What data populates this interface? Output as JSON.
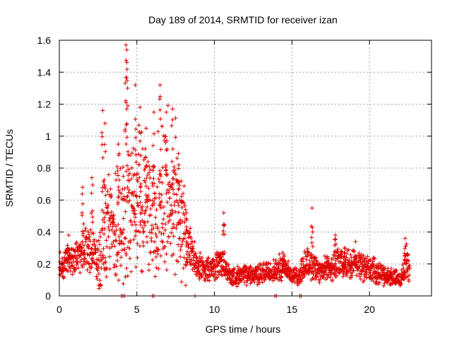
{
  "chart_data": {
    "type": "scatter",
    "title": "Day 189 of 2014, SRMTID for receiver izan",
    "xlabel": "GPS time / hours",
    "ylabel": "SRMTID / TECUs",
    "xlim": [
      0,
      24
    ],
    "ylim": [
      0,
      1.6
    ],
    "xticks": [
      0,
      5,
      10,
      15,
      20
    ],
    "xtick_labels": [
      "0",
      "5",
      "10",
      "15",
      "20"
    ],
    "yticks": [
      0,
      0.2,
      0.4,
      0.6,
      0.8,
      1,
      1.2,
      1.4,
      1.6
    ],
    "ytick_labels": [
      "0",
      "0.2",
      "0.4",
      "0.6",
      "0.8",
      "1",
      "1.2",
      "1.4",
      "1.6"
    ],
    "grid": true,
    "marker": "+",
    "colors": {
      "series": "#e00000",
      "axis": "#000000",
      "grid": "#a0a0a0"
    },
    "series": [
      {
        "name": "SRMTID",
        "envelope": [
          [
            0.0,
            0.18
          ],
          [
            0.5,
            0.22
          ],
          [
            1.0,
            0.24
          ],
          [
            1.5,
            0.3
          ],
          [
            2.0,
            0.3
          ],
          [
            2.5,
            0.24
          ],
          [
            3.0,
            0.34
          ],
          [
            3.5,
            0.36
          ],
          [
            4.0,
            0.42
          ],
          [
            4.5,
            0.5
          ],
          [
            5.0,
            0.55
          ],
          [
            5.5,
            0.52
          ],
          [
            6.0,
            0.48
          ],
          [
            6.5,
            0.52
          ],
          [
            7.0,
            0.58
          ],
          [
            7.5,
            0.6
          ],
          [
            8.0,
            0.42
          ],
          [
            8.5,
            0.28
          ],
          [
            9.0,
            0.18
          ],
          [
            9.5,
            0.16
          ],
          [
            10.0,
            0.18
          ],
          [
            10.5,
            0.22
          ],
          [
            11.0,
            0.12
          ],
          [
            12.0,
            0.13
          ],
          [
            13.0,
            0.14
          ],
          [
            14.0,
            0.16
          ],
          [
            14.5,
            0.2
          ],
          [
            15.0,
            0.12
          ],
          [
            15.5,
            0.13
          ],
          [
            16.0,
            0.22
          ],
          [
            16.5,
            0.18
          ],
          [
            17.0,
            0.16
          ],
          [
            18.0,
            0.2
          ],
          [
            19.0,
            0.2
          ],
          [
            20.0,
            0.17
          ],
          [
            21.0,
            0.13
          ],
          [
            22.0,
            0.1
          ],
          [
            22.4,
            0.22
          ],
          [
            22.6,
            0.14
          ]
        ],
        "peaks": [
          {
            "x": 0.6,
            "y": 0.38
          },
          {
            "x": 1.5,
            "y": 0.68
          },
          {
            "x": 2.1,
            "y": 0.74
          },
          {
            "x": 2.8,
            "y": 1.16
          },
          {
            "x": 2.95,
            "y": 1.08
          },
          {
            "x": 3.8,
            "y": 0.95
          },
          {
            "x": 4.3,
            "y": 1.57
          },
          {
            "x": 4.35,
            "y": 1.54
          },
          {
            "x": 4.4,
            "y": 1.3
          },
          {
            "x": 4.9,
            "y": 1.32
          },
          {
            "x": 5.2,
            "y": 1.18
          },
          {
            "x": 5.6,
            "y": 1.05
          },
          {
            "x": 6.1,
            "y": 1.15
          },
          {
            "x": 6.5,
            "y": 1.32
          },
          {
            "x": 6.9,
            "y": 1.15
          },
          {
            "x": 7.3,
            "y": 1.17
          },
          {
            "x": 7.7,
            "y": 0.82
          },
          {
            "x": 8.2,
            "y": 0.52
          },
          {
            "x": 10.6,
            "y": 0.52
          },
          {
            "x": 14.4,
            "y": 0.27
          },
          {
            "x": 16.3,
            "y": 0.55
          },
          {
            "x": 17.8,
            "y": 0.38
          },
          {
            "x": 18.4,
            "y": 0.3
          },
          {
            "x": 19.1,
            "y": 0.34
          },
          {
            "x": 22.3,
            "y": 0.36
          }
        ],
        "zero_points": [
          4.0,
          4.1,
          4.2,
          6.0,
          6.1,
          8.75,
          13.9,
          14.0,
          15.5,
          15.6
        ]
      }
    ]
  }
}
